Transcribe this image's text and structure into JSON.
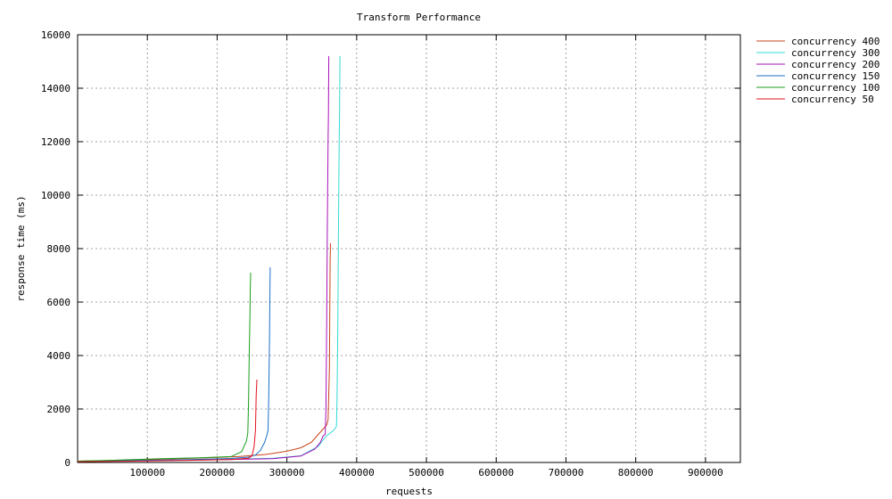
{
  "chart_data": {
    "type": "line",
    "title": "Transform Performance",
    "xlabel": "requests",
    "ylabel": "response time (ms)",
    "xlim": [
      0,
      950000
    ],
    "ylim": [
      0,
      16000
    ],
    "x_ticks": [
      100000,
      200000,
      300000,
      400000,
      500000,
      600000,
      700000,
      800000,
      900000
    ],
    "y_ticks": [
      0,
      2000,
      4000,
      6000,
      8000,
      10000,
      12000,
      14000,
      16000
    ],
    "grid": true,
    "legend_position": "right",
    "series": [
      {
        "name": "concurrency 400",
        "color": "#c8441b",
        "points": [
          [
            0,
            50
          ],
          [
            60000,
            80
          ],
          [
            120000,
            120
          ],
          [
            180000,
            170
          ],
          [
            230000,
            220
          ],
          [
            270000,
            300
          ],
          [
            300000,
            420
          ],
          [
            320000,
            550
          ],
          [
            335000,
            750
          ],
          [
            345000,
            1050
          ],
          [
            352000,
            1250
          ],
          [
            357000,
            1400
          ],
          [
            359000,
            1600
          ],
          [
            361000,
            3500
          ],
          [
            362000,
            7500
          ],
          [
            362500,
            8200
          ]
        ]
      },
      {
        "name": "concurrency 300",
        "color": "#31dbd5",
        "points": [
          [
            0,
            50
          ],
          [
            100000,
            80
          ],
          [
            200000,
            110
          ],
          [
            280000,
            160
          ],
          [
            320000,
            250
          ],
          [
            345000,
            600
          ],
          [
            355000,
            950
          ],
          [
            362000,
            1100
          ],
          [
            367000,
            1200
          ],
          [
            371000,
            1350
          ],
          [
            372000,
            2500
          ],
          [
            373000,
            5000
          ],
          [
            374000,
            9000
          ],
          [
            375000,
            12200
          ],
          [
            375500,
            13200
          ],
          [
            376000,
            15200
          ]
        ]
      },
      {
        "name": "concurrency 200",
        "color": "#a80fb8",
        "points": [
          [
            0,
            40
          ],
          [
            100000,
            70
          ],
          [
            200000,
            100
          ],
          [
            280000,
            140
          ],
          [
            320000,
            240
          ],
          [
            340000,
            500
          ],
          [
            348000,
            750
          ],
          [
            352000,
            1000
          ],
          [
            355000,
            1050
          ],
          [
            356000,
            2000
          ],
          [
            357000,
            5000
          ],
          [
            358000,
            9000
          ],
          [
            359000,
            12000
          ],
          [
            359500,
            13000
          ],
          [
            360000,
            15200
          ]
        ]
      },
      {
        "name": "concurrency 150",
        "color": "#1c6fc8",
        "points": [
          [
            0,
            40
          ],
          [
            80000,
            70
          ],
          [
            160000,
            110
          ],
          [
            220000,
            150
          ],
          [
            245000,
            200
          ],
          [
            255000,
            280
          ],
          [
            262000,
            450
          ],
          [
            268000,
            750
          ],
          [
            271000,
            1000
          ],
          [
            273000,
            1200
          ],
          [
            274000,
            2500
          ],
          [
            275000,
            4500
          ],
          [
            275500,
            6000
          ],
          [
            276000,
            7300
          ]
        ]
      },
      {
        "name": "concurrency 100",
        "color": "#1a9e1a",
        "points": [
          [
            0,
            50
          ],
          [
            60000,
            90
          ],
          [
            120000,
            140
          ],
          [
            180000,
            180
          ],
          [
            220000,
            220
          ],
          [
            235000,
            400
          ],
          [
            242000,
            800
          ],
          [
            244000,
            1100
          ],
          [
            245000,
            2200
          ],
          [
            246000,
            4000
          ],
          [
            247000,
            5500
          ],
          [
            247500,
            6500
          ],
          [
            248000,
            7100
          ]
        ]
      },
      {
        "name": "concurrency 50",
        "color": "#e3111d",
        "points": [
          [
            0,
            30
          ],
          [
            80000,
            50
          ],
          [
            160000,
            80
          ],
          [
            220000,
            110
          ],
          [
            245000,
            160
          ],
          [
            250000,
            250
          ],
          [
            253000,
            600
          ],
          [
            255000,
            1200
          ],
          [
            256000,
            2500
          ],
          [
            257000,
            3100
          ]
        ]
      }
    ]
  }
}
